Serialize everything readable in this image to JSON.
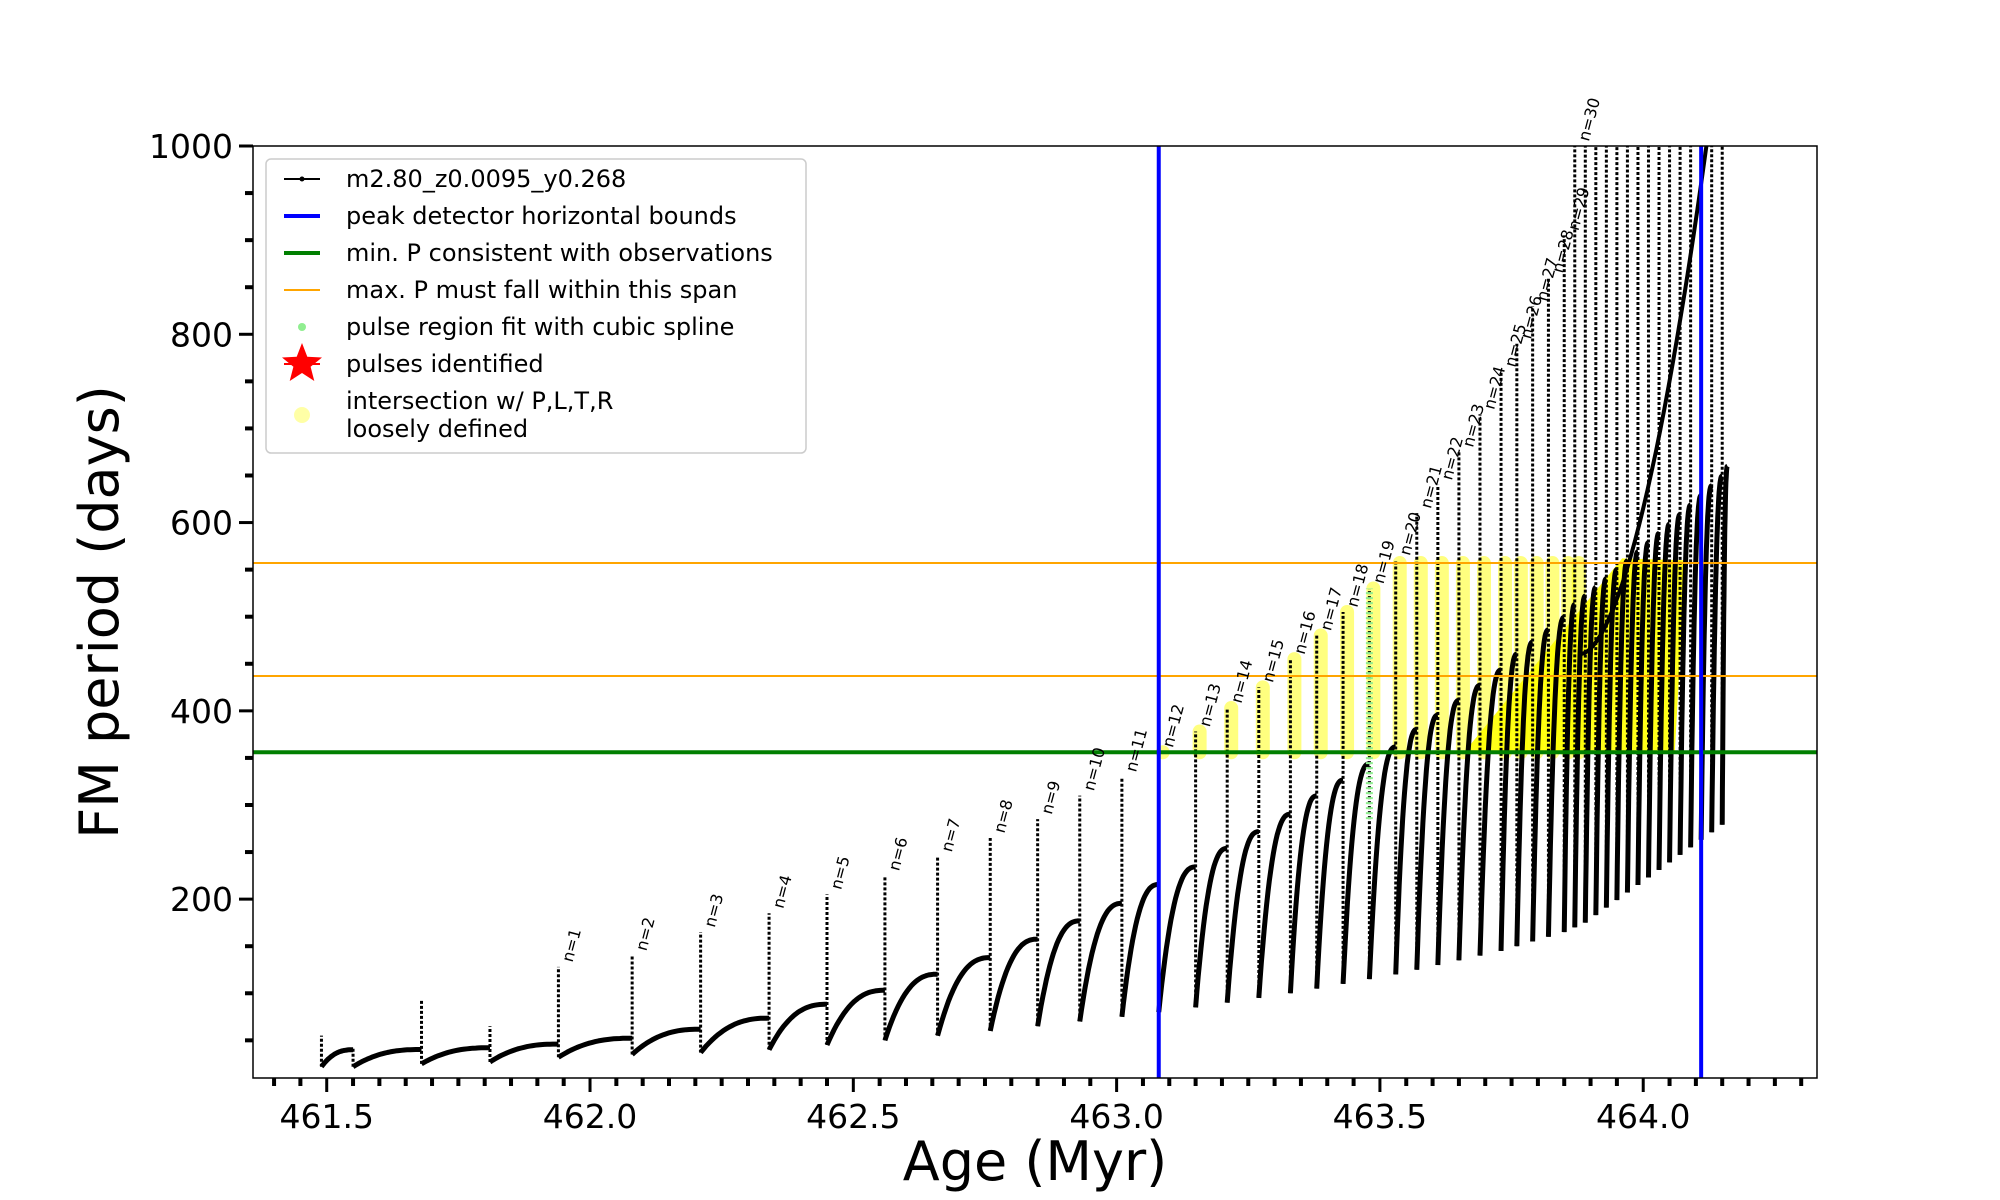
{
  "chart_data": {
    "type": "line",
    "xlabel": "Age (Myr)",
    "ylabel": "FM period (days)",
    "xlim": [
      461.36,
      464.33
    ],
    "ylim": [
      10,
      1000
    ],
    "x_ticks": [
      "461.5",
      "462.0",
      "462.5",
      "463.0",
      "463.5",
      "464.0"
    ],
    "y_ticks": [
      "200",
      "400",
      "600",
      "800",
      "1000"
    ],
    "grid": false,
    "legend_position": "upper-left",
    "colors": {
      "track": "#000000",
      "vertical_bounds": "#0000ff",
      "min_period": "#007f00",
      "max_span": "#ffa500",
      "spline": "#90ee90",
      "pulses": "#ff0000",
      "intersection": "#ffff00"
    },
    "legend": [
      {
        "label": "m2.80_z0.0095_y0.268",
        "style": "track"
      },
      {
        "label": "peak detector horizontal bounds",
        "style": "vertical_bounds"
      },
      {
        "label": "min. P consistent with observations",
        "style": "min_period"
      },
      {
        "label": "max. P must fall within this span",
        "style": "max_span"
      },
      {
        "label": "pulse region fit with cubic spline",
        "style": "spline"
      },
      {
        "label": "pulses identified",
        "style": "pulses"
      },
      {
        "label": "intersection w/ P,L,T,R",
        "label2": "loosely defined",
        "style": "intersection"
      }
    ],
    "vertical_lines_x": [
      463.08,
      464.11
    ],
    "min_period_y": 356,
    "max_span_y": [
      437,
      557
    ],
    "pulses": [
      {
        "label": "n=1",
        "x": 461.94,
        "peak": 128,
        "trough": 32
      },
      {
        "label": "n=2",
        "x": 462.08,
        "peak": 140,
        "trough": 35
      },
      {
        "label": "n=3",
        "x": 462.21,
        "peak": 165,
        "trough": 37
      },
      {
        "label": "n=4",
        "x": 462.34,
        "peak": 185,
        "trough": 40
      },
      {
        "label": "n=5",
        "x": 462.45,
        "peak": 205,
        "trough": 45
      },
      {
        "label": "n=6",
        "x": 462.56,
        "peak": 225,
        "trough": 50
      },
      {
        "label": "n=7",
        "x": 462.66,
        "peak": 245,
        "trough": 55
      },
      {
        "label": "n=8",
        "x": 462.76,
        "peak": 265,
        "trough": 60
      },
      {
        "label": "n=9",
        "x": 462.85,
        "peak": 285,
        "trough": 65
      },
      {
        "label": "n=10",
        "x": 462.93,
        "peak": 310,
        "trough": 70
      },
      {
        "label": "n=11",
        "x": 463.01,
        "peak": 330,
        "trough": 75
      },
      {
        "label": "n=12",
        "x": 463.08,
        "peak": 356,
        "trough": 80
      },
      {
        "label": "n=13",
        "x": 463.15,
        "peak": 378,
        "trough": 85
      },
      {
        "label": "n=14",
        "x": 463.21,
        "peak": 403,
        "trough": 90
      },
      {
        "label": "n=15",
        "x": 463.27,
        "peak": 425,
        "trough": 95
      },
      {
        "label": "n=16",
        "x": 463.33,
        "peak": 455,
        "trough": 100
      },
      {
        "label": "n=17",
        "x": 463.38,
        "peak": 480,
        "trough": 105
      },
      {
        "label": "n=18",
        "x": 463.43,
        "peak": 505,
        "trough": 110
      },
      {
        "label": "n=19",
        "x": 463.48,
        "peak": 530,
        "trough": 115
      },
      {
        "label": "n=20",
        "x": 463.53,
        "peak": 560,
        "trough": 120
      },
      {
        "label": "n=21",
        "x": 463.57,
        "peak": 610,
        "trough": 125
      },
      {
        "label": "n=22",
        "x": 463.61,
        "peak": 640,
        "trough": 130
      },
      {
        "label": "n=23",
        "x": 463.65,
        "peak": 675,
        "trough": 135
      },
      {
        "label": "n=24",
        "x": 463.69,
        "peak": 715,
        "trough": 140
      },
      {
        "label": "n=25",
        "x": 463.73,
        "peak": 760,
        "trough": 145
      },
      {
        "label": "n=26",
        "x": 463.76,
        "peak": 790,
        "trough": 150
      },
      {
        "label": "n=27",
        "x": 463.79,
        "peak": 830,
        "trough": 155
      },
      {
        "label": "n=28",
        "x": 463.82,
        "peak": 860,
        "trough": 160
      },
      {
        "label": "n=29",
        "x": 463.85,
        "peak": 905,
        "trough": 165
      },
      {
        "label": "n=30",
        "x": 463.87,
        "peak": 1000,
        "trough": 170
      }
    ]
  }
}
